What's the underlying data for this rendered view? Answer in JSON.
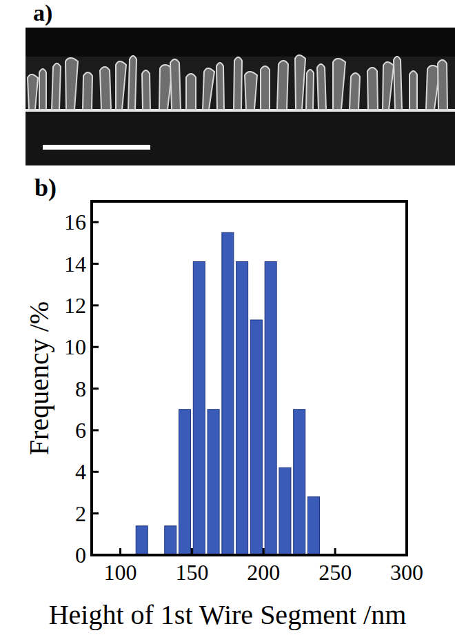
{
  "image_panel": {
    "label": "a)"
  },
  "chart_data": {
    "type": "histogram",
    "panel_label": "b)",
    "xlabel": "Height of 1st Wire Segment /nm",
    "ylabel": "Frequency /%",
    "bins": [
      110,
      120,
      130,
      140,
      150,
      160,
      170,
      180,
      190,
      200,
      210,
      220,
      230,
      240
    ],
    "values": [
      1.4,
      0,
      1.4,
      7.0,
      14.1,
      7.0,
      15.5,
      14.1,
      11.3,
      14.1,
      4.2,
      7.0,
      2.8
    ],
    "color": "#3a5cb8",
    "xlim": [
      80,
      300
    ],
    "xticks": [
      100,
      150,
      200,
      250,
      300
    ],
    "ylim": [
      0,
      17
    ],
    "yticks": [
      0,
      2,
      4,
      6,
      8,
      10,
      12,
      14,
      16
    ]
  }
}
